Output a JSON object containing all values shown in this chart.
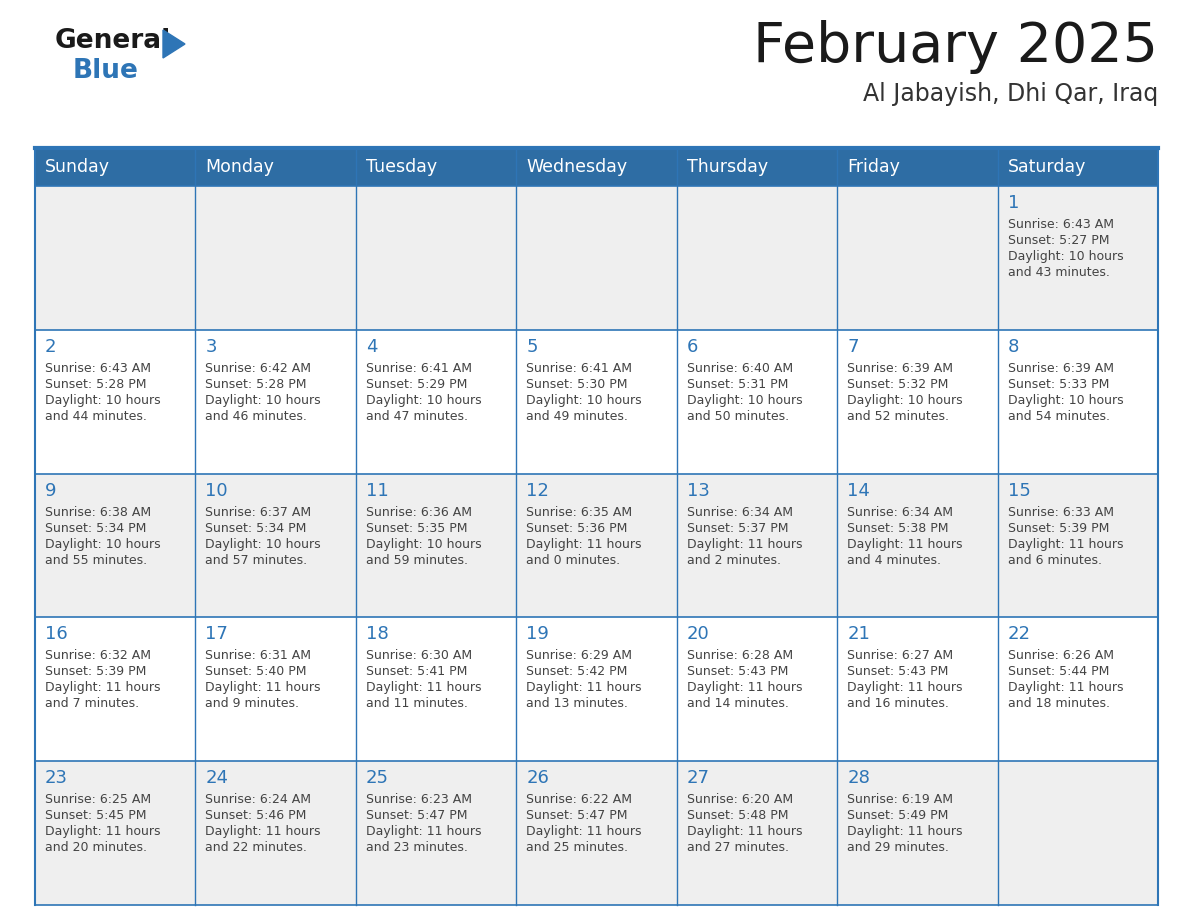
{
  "title": "February 2025",
  "subtitle": "Al Jabayish, Dhi Qar, Iraq",
  "header_bg": "#2E6DA4",
  "header_text_color": "#FFFFFF",
  "day_headers": [
    "Sunday",
    "Monday",
    "Tuesday",
    "Wednesday",
    "Thursday",
    "Friday",
    "Saturday"
  ],
  "title_color": "#1a1a1a",
  "subtitle_color": "#333333",
  "line_color": "#2E75B6",
  "text_color": "#444444",
  "day_number_color": "#2E75B6",
  "logo_general_color": "#1a1a1a",
  "logo_blue_color": "#2E75B6",
  "logo_triangle_color": "#2E75B6",
  "cell_bg_odd": "#EFEFEF",
  "cell_bg_even": "#FFFFFF",
  "calendar_data": [
    [
      null,
      null,
      null,
      null,
      null,
      null,
      {
        "day": 1,
        "sunrise": "6:43 AM",
        "sunset": "5:27 PM",
        "daylight": "10 hours and 43 minutes."
      }
    ],
    [
      {
        "day": 2,
        "sunrise": "6:43 AM",
        "sunset": "5:28 PM",
        "daylight": "10 hours and 44 minutes."
      },
      {
        "day": 3,
        "sunrise": "6:42 AM",
        "sunset": "5:28 PM",
        "daylight": "10 hours and 46 minutes."
      },
      {
        "day": 4,
        "sunrise": "6:41 AM",
        "sunset": "5:29 PM",
        "daylight": "10 hours and 47 minutes."
      },
      {
        "day": 5,
        "sunrise": "6:41 AM",
        "sunset": "5:30 PM",
        "daylight": "10 hours and 49 minutes."
      },
      {
        "day": 6,
        "sunrise": "6:40 AM",
        "sunset": "5:31 PM",
        "daylight": "10 hours and 50 minutes."
      },
      {
        "day": 7,
        "sunrise": "6:39 AM",
        "sunset": "5:32 PM",
        "daylight": "10 hours and 52 minutes."
      },
      {
        "day": 8,
        "sunrise": "6:39 AM",
        "sunset": "5:33 PM",
        "daylight": "10 hours and 54 minutes."
      }
    ],
    [
      {
        "day": 9,
        "sunrise": "6:38 AM",
        "sunset": "5:34 PM",
        "daylight": "10 hours and 55 minutes."
      },
      {
        "day": 10,
        "sunrise": "6:37 AM",
        "sunset": "5:34 PM",
        "daylight": "10 hours and 57 minutes."
      },
      {
        "day": 11,
        "sunrise": "6:36 AM",
        "sunset": "5:35 PM",
        "daylight": "10 hours and 59 minutes."
      },
      {
        "day": 12,
        "sunrise": "6:35 AM",
        "sunset": "5:36 PM",
        "daylight": "11 hours and 0 minutes."
      },
      {
        "day": 13,
        "sunrise": "6:34 AM",
        "sunset": "5:37 PM",
        "daylight": "11 hours and 2 minutes."
      },
      {
        "day": 14,
        "sunrise": "6:34 AM",
        "sunset": "5:38 PM",
        "daylight": "11 hours and 4 minutes."
      },
      {
        "day": 15,
        "sunrise": "6:33 AM",
        "sunset": "5:39 PM",
        "daylight": "11 hours and 6 minutes."
      }
    ],
    [
      {
        "day": 16,
        "sunrise": "6:32 AM",
        "sunset": "5:39 PM",
        "daylight": "11 hours and 7 minutes."
      },
      {
        "day": 17,
        "sunrise": "6:31 AM",
        "sunset": "5:40 PM",
        "daylight": "11 hours and 9 minutes."
      },
      {
        "day": 18,
        "sunrise": "6:30 AM",
        "sunset": "5:41 PM",
        "daylight": "11 hours and 11 minutes."
      },
      {
        "day": 19,
        "sunrise": "6:29 AM",
        "sunset": "5:42 PM",
        "daylight": "11 hours and 13 minutes."
      },
      {
        "day": 20,
        "sunrise": "6:28 AM",
        "sunset": "5:43 PM",
        "daylight": "11 hours and 14 minutes."
      },
      {
        "day": 21,
        "sunrise": "6:27 AM",
        "sunset": "5:43 PM",
        "daylight": "11 hours and 16 minutes."
      },
      {
        "day": 22,
        "sunrise": "6:26 AM",
        "sunset": "5:44 PM",
        "daylight": "11 hours and 18 minutes."
      }
    ],
    [
      {
        "day": 23,
        "sunrise": "6:25 AM",
        "sunset": "5:45 PM",
        "daylight": "11 hours and 20 minutes."
      },
      {
        "day": 24,
        "sunrise": "6:24 AM",
        "sunset": "5:46 PM",
        "daylight": "11 hours and 22 minutes."
      },
      {
        "day": 25,
        "sunrise": "6:23 AM",
        "sunset": "5:47 PM",
        "daylight": "11 hours and 23 minutes."
      },
      {
        "day": 26,
        "sunrise": "6:22 AM",
        "sunset": "5:47 PM",
        "daylight": "11 hours and 25 minutes."
      },
      {
        "day": 27,
        "sunrise": "6:20 AM",
        "sunset": "5:48 PM",
        "daylight": "11 hours and 27 minutes."
      },
      {
        "day": 28,
        "sunrise": "6:19 AM",
        "sunset": "5:49 PM",
        "daylight": "11 hours and 29 minutes."
      },
      null
    ]
  ]
}
